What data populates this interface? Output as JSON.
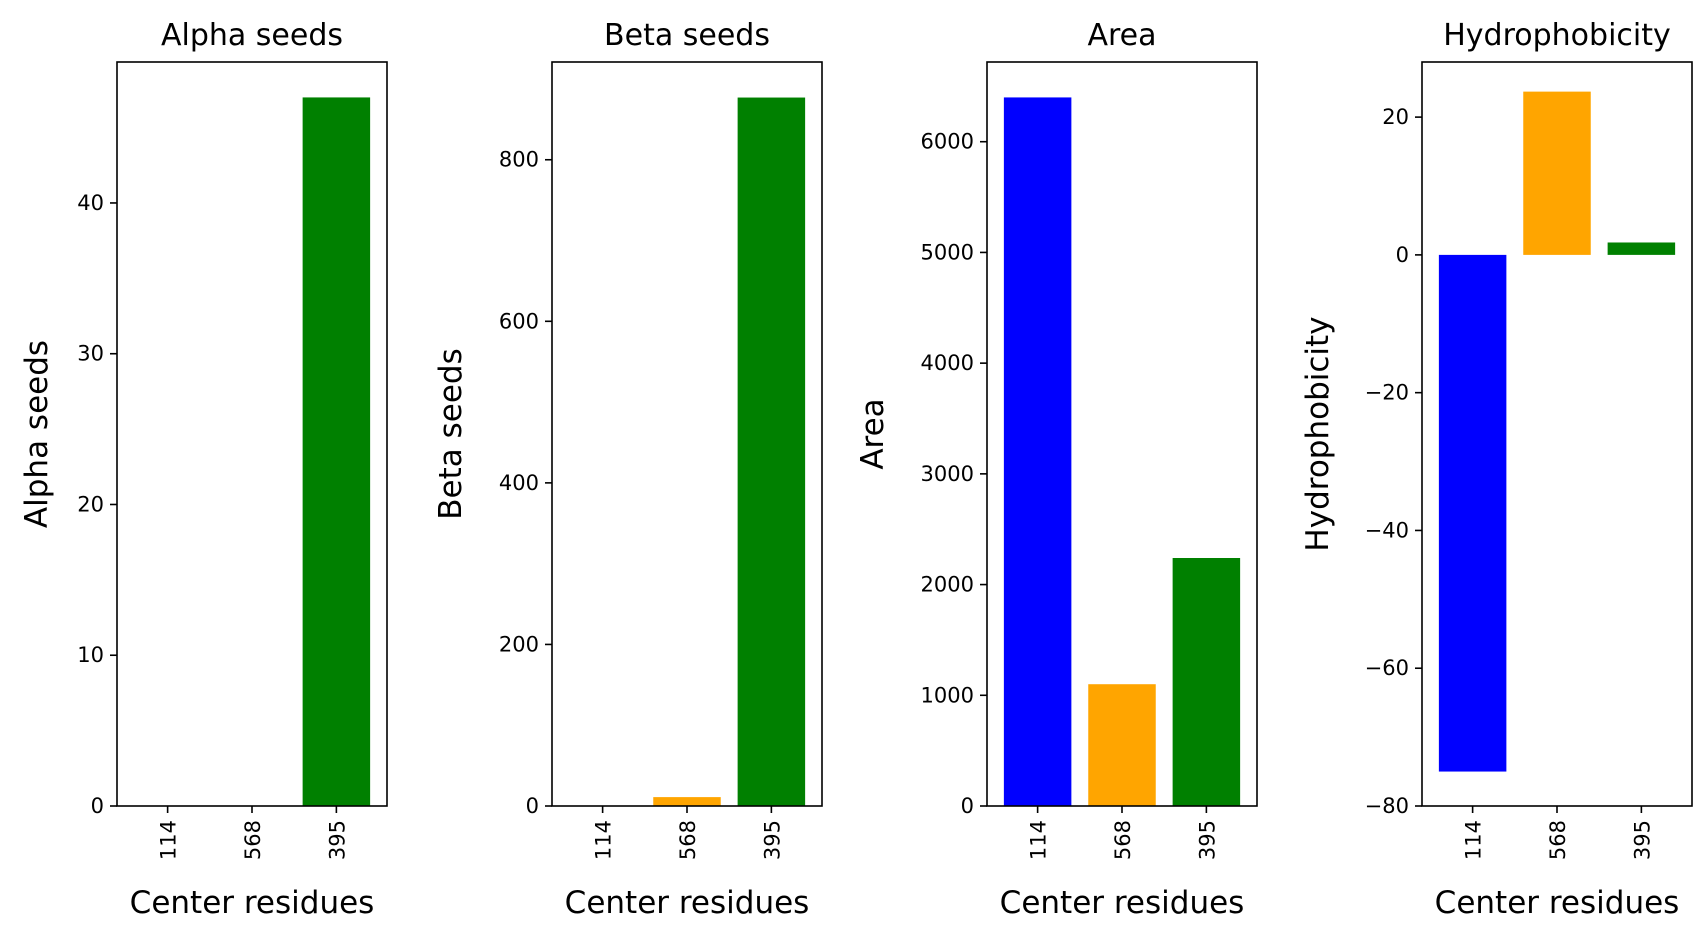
{
  "figure": {
    "panels": [
      {
        "title": "Alpha seeds",
        "ylabel": "Alpha seeds",
        "xlabel": "Center residues"
      },
      {
        "title": "Beta seeds",
        "ylabel": "Beta seeds",
        "xlabel": "Center residues"
      },
      {
        "title": "Area",
        "ylabel": "Area",
        "xlabel": "Center residues"
      },
      {
        "title": "Hydrophobicity",
        "ylabel": "Hydrophobicity",
        "xlabel": "Center residues"
      }
    ]
  },
  "chart_data": [
    {
      "type": "bar",
      "title": "Alpha seeds",
      "xlabel": "Center residues",
      "ylabel": "Alpha seeds",
      "categories": [
        "114",
        "568",
        "395"
      ],
      "values": [
        0,
        0,
        47
      ],
      "colors": [
        "#0000ff",
        "#ffa500",
        "#008000"
      ],
      "ylim": [
        0,
        49.35
      ],
      "yticks": [
        0,
        10,
        20,
        30,
        40
      ]
    },
    {
      "type": "bar",
      "title": "Beta seeds",
      "xlabel": "Center residues",
      "ylabel": "Beta seeds",
      "categories": [
        "114",
        "568",
        "395"
      ],
      "values": [
        0,
        11,
        877
      ],
      "colors": [
        "#0000ff",
        "#ffa500",
        "#008000"
      ],
      "ylim": [
        0,
        921
      ],
      "yticks": [
        0,
        200,
        400,
        600,
        800
      ]
    },
    {
      "type": "bar",
      "title": "Area",
      "xlabel": "Center residues",
      "ylabel": "Area",
      "categories": [
        "114",
        "568",
        "395"
      ],
      "values": [
        6400,
        1100,
        2240
      ],
      "colors": [
        "#0000ff",
        "#ffa500",
        "#008000"
      ],
      "ylim": [
        0,
        6720
      ],
      "yticks": [
        0,
        1000,
        2000,
        3000,
        4000,
        5000,
        6000
      ]
    },
    {
      "type": "bar",
      "title": "Hydrophobicity",
      "xlabel": "Center residues",
      "ylabel": "Hydrophobicity",
      "categories": [
        "114",
        "568",
        "395"
      ],
      "values": [
        -75.0,
        23.7,
        1.8
      ],
      "colors": [
        "#0000ff",
        "#ffa500",
        "#008000"
      ],
      "ylim": [
        -80,
        28
      ],
      "yticks": [
        -80,
        -60,
        -40,
        -20,
        0,
        20
      ]
    }
  ]
}
